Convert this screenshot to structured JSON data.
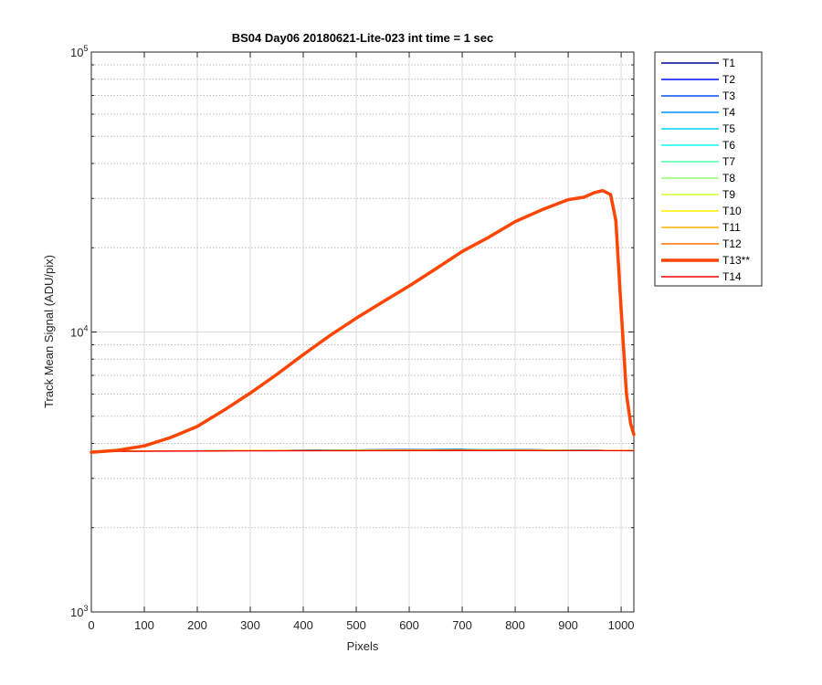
{
  "chart_data": {
    "type": "line",
    "title": "BS04 Day06 20180621-Lite-023 int time = 1 sec",
    "xlabel": "Pixels",
    "ylabel": "Track Mean Signal (ADU/pix)",
    "xlim": [
      0,
      1024
    ],
    "ylim": [
      1000,
      100000
    ],
    "yscale": "log",
    "grid": true,
    "xticks": [
      0,
      100,
      200,
      300,
      400,
      500,
      600,
      700,
      800,
      900,
      1000
    ],
    "yticks": [
      1000,
      10000,
      100000
    ],
    "ytick_labels": [
      {
        "base": "10",
        "exp": "3"
      },
      {
        "base": "10",
        "exp": "4"
      },
      {
        "base": "10",
        "exp": "5"
      }
    ],
    "legend_position": "outside-top-right",
    "series": [
      {
        "name": "T1",
        "color": "#00008f",
        "x": [
          0,
          100,
          300,
          500,
          700,
          800,
          1024
        ],
        "y": [
          3750,
          3760,
          3770,
          3790,
          3810,
          3800,
          3770
        ]
      },
      {
        "name": "T2",
        "color": "#0010ff",
        "x": [
          0,
          100,
          300,
          500,
          700,
          800,
          1024
        ],
        "y": [
          3750,
          3760,
          3770,
          3790,
          3810,
          3800,
          3770
        ]
      },
      {
        "name": "T3",
        "color": "#0050ff",
        "x": [
          0,
          100,
          300,
          500,
          700,
          800,
          1024
        ],
        "y": [
          3750,
          3760,
          3770,
          3790,
          3805,
          3800,
          3770
        ]
      },
      {
        "name": "T4",
        "color": "#0090ff",
        "x": [
          0,
          100,
          300,
          500,
          700,
          800,
          1024
        ],
        "y": [
          3750,
          3760,
          3770,
          3785,
          3805,
          3800,
          3770
        ]
      },
      {
        "name": "T5",
        "color": "#00cfff",
        "x": [
          0,
          100,
          300,
          500,
          700,
          800,
          1024
        ],
        "y": [
          3750,
          3760,
          3770,
          3785,
          3800,
          3795,
          3770
        ]
      },
      {
        "name": "T6",
        "color": "#10ffef",
        "x": [
          0,
          100,
          300,
          500,
          700,
          800,
          1024
        ],
        "y": [
          3750,
          3760,
          3770,
          3785,
          3800,
          3795,
          3770
        ]
      },
      {
        "name": "T7",
        "color": "#50ffaf",
        "x": [
          0,
          100,
          300,
          500,
          700,
          800,
          1024
        ],
        "y": [
          3750,
          3760,
          3770,
          3780,
          3795,
          3790,
          3770
        ]
      },
      {
        "name": "T8",
        "color": "#8fff70",
        "x": [
          0,
          100,
          300,
          500,
          700,
          800,
          1024
        ],
        "y": [
          3750,
          3760,
          3770,
          3780,
          3795,
          3790,
          3770
        ]
      },
      {
        "name": "T9",
        "color": "#cfff30",
        "x": [
          0,
          100,
          300,
          500,
          700,
          800,
          1024
        ],
        "y": [
          3750,
          3760,
          3770,
          3780,
          3790,
          3785,
          3770
        ]
      },
      {
        "name": "T10",
        "color": "#ffef00",
        "x": [
          0,
          100,
          300,
          500,
          700,
          800,
          1024
        ],
        "y": [
          3750,
          3760,
          3770,
          3780,
          3790,
          3785,
          3770
        ]
      },
      {
        "name": "T11",
        "color": "#ffaf00",
        "x": [
          0,
          100,
          300,
          500,
          700,
          800,
          1024
        ],
        "y": [
          3750,
          3760,
          3770,
          3775,
          3785,
          3780,
          3770
        ]
      },
      {
        "name": "T12",
        "color": "#ff7000",
        "x": [
          0,
          100,
          300,
          500,
          700,
          800,
          1024
        ],
        "y": [
          3750,
          3760,
          3770,
          3775,
          3785,
          3780,
          3770
        ]
      },
      {
        "name": "T13**",
        "color": "#ff4500",
        "bold": true,
        "x": [
          0,
          50,
          100,
          150,
          200,
          250,
          300,
          350,
          400,
          450,
          500,
          550,
          600,
          650,
          700,
          750,
          800,
          850,
          900,
          930,
          950,
          965,
          980,
          990,
          1000,
          1010,
          1018,
          1024
        ],
        "y": [
          3720,
          3780,
          3920,
          4200,
          4600,
          5250,
          6050,
          7050,
          8300,
          9700,
          11200,
          12800,
          14600,
          16800,
          19400,
          21800,
          24800,
          27300,
          29700,
          30300,
          31500,
          32000,
          31000,
          25000,
          12000,
          6000,
          4700,
          4300
        ]
      },
      {
        "name": "T14",
        "color": "#ef0000",
        "x": [
          0,
          100,
          300,
          500,
          700,
          800,
          1024
        ],
        "y": [
          3740,
          3750,
          3760,
          3765,
          3770,
          3770,
          3765
        ]
      }
    ]
  }
}
